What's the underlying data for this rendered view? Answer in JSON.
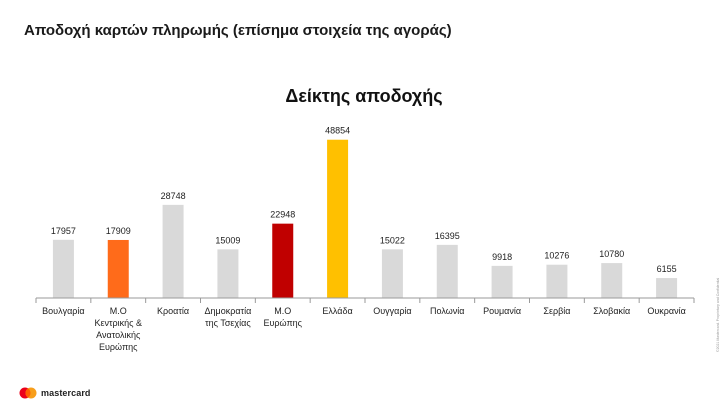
{
  "slide_title": "Αποδοχή καρτών πληρωμής (επίσημα στοιχεία της αγοράς)",
  "footer": {
    "brand": "mastercard",
    "copyright": "©2021 Mastercard. Proprietary and Confidential",
    "logo_colors": [
      "#eb001b",
      "#f79e1b",
      "#ff5f00"
    ]
  },
  "chart_data": {
    "type": "bar",
    "title": "Δείκτης αποδοχής",
    "xlabel": "",
    "ylabel": "",
    "ylim": [
      0,
      50000
    ],
    "grid": false,
    "categories": [
      "Βουλγαρία",
      "Μ.Ο Κεντρικής & Ανατολικής Ευρώπης",
      "Κροατία",
      "Δημοκρατία της Τσεχίας",
      "Μ.Ο Ευρώπης",
      "Ελλάδα",
      "Ουγγαρία",
      "Πολωνία",
      "Ρουμανία",
      "Σερβία",
      "Σλοβακία",
      "Ουκρανία"
    ],
    "category_lines": [
      [
        "Βουλγαρία"
      ],
      [
        "Μ.Ο",
        "Κεντρικής &",
        "Ανατολικής",
        "Ευρώπης"
      ],
      [
        "Κροατία"
      ],
      [
        "Δημοκρατία",
        "της Τσεχίας"
      ],
      [
        "Μ.Ο",
        "Ευρώπης"
      ],
      [
        "Ελλάδα"
      ],
      [
        "Ουγγαρία"
      ],
      [
        "Πολωνία"
      ],
      [
        "Ρουμανία"
      ],
      [
        "Σερβία"
      ],
      [
        "Σλοβακία"
      ],
      [
        "Ουκρανία"
      ]
    ],
    "values": [
      17957,
      17909,
      28748,
      15009,
      22948,
      48854,
      15022,
      16395,
      9918,
      10276,
      10780,
      6155
    ],
    "colors": [
      "#d9d9d9",
      "#ff6b1a",
      "#d9d9d9",
      "#d9d9d9",
      "#c00000",
      "#ffc000",
      "#d9d9d9",
      "#d9d9d9",
      "#d9d9d9",
      "#d9d9d9",
      "#d9d9d9",
      "#d9d9d9"
    ],
    "axis_color": "#9a9a9a"
  }
}
